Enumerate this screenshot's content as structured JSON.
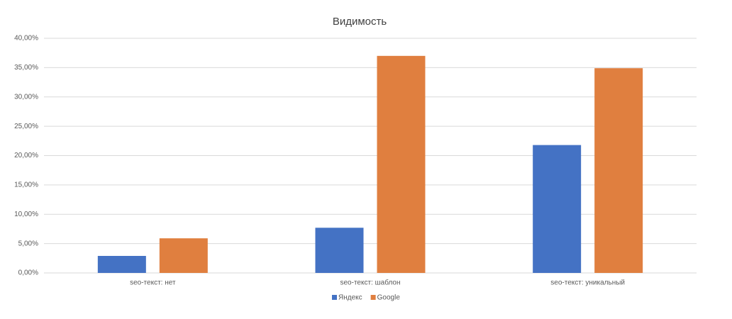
{
  "chart_data": {
    "type": "bar",
    "title": "Видимость",
    "categories": [
      "seo-текст: нет",
      "seo-текст: шаблон",
      "seo-текст: уникальный"
    ],
    "series": [
      {
        "name": "Яндекс",
        "color": "#4472c4",
        "values": [
          2.9,
          7.7,
          21.8
        ]
      },
      {
        "name": "Google",
        "color": "#e07f3f",
        "values": [
          5.9,
          37.0,
          34.9
        ]
      }
    ],
    "ylim": [
      0,
      40
    ],
    "yticks": [
      {
        "value": 0,
        "label": "0,00%"
      },
      {
        "value": 5,
        "label": "5,00%"
      },
      {
        "value": 10,
        "label": "10,00%"
      },
      {
        "value": 15,
        "label": "15,00%"
      },
      {
        "value": 20,
        "label": "20,00%"
      },
      {
        "value": 25,
        "label": "25,00%"
      },
      {
        "value": 30,
        "label": "30,00%"
      },
      {
        "value": 35,
        "label": "35,00%"
      },
      {
        "value": 40,
        "label": "40,00%"
      }
    ],
    "grid": true,
    "legend": "bottom"
  }
}
